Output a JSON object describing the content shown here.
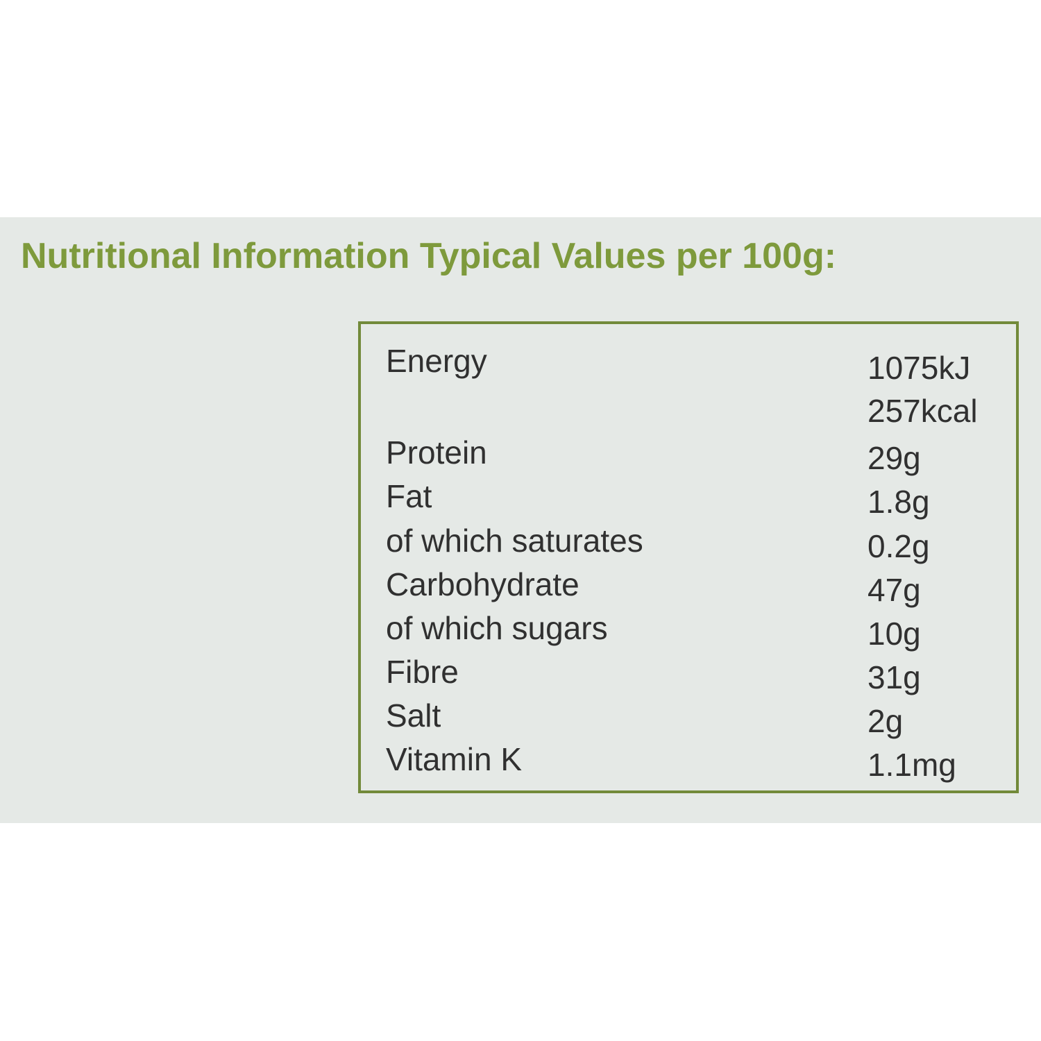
{
  "title": "Nutritional Information Typical Values per 100g:",
  "rows": [
    {
      "name": "Energy",
      "value": "1075kJ"
    },
    {
      "name": "",
      "value": "257kcal"
    },
    {
      "name": "Protein",
      "value": "29g"
    },
    {
      "name": "Fat",
      "value": "1.8g"
    },
    {
      "name": "of which saturates",
      "value": "0.2g"
    },
    {
      "name": "Carbohydrate",
      "value": "47g"
    },
    {
      "name": "of which sugars",
      "value": "10g"
    },
    {
      "name": "Fibre",
      "value": "31g"
    },
    {
      "name": "Salt",
      "value": "2g"
    },
    {
      "name": "Vitamin K",
      "value": "1.1mg"
    }
  ],
  "colors": {
    "title": "#7e9a3c",
    "border": "#728a3a",
    "panel": "#e5e9e6",
    "text": "#303030"
  }
}
